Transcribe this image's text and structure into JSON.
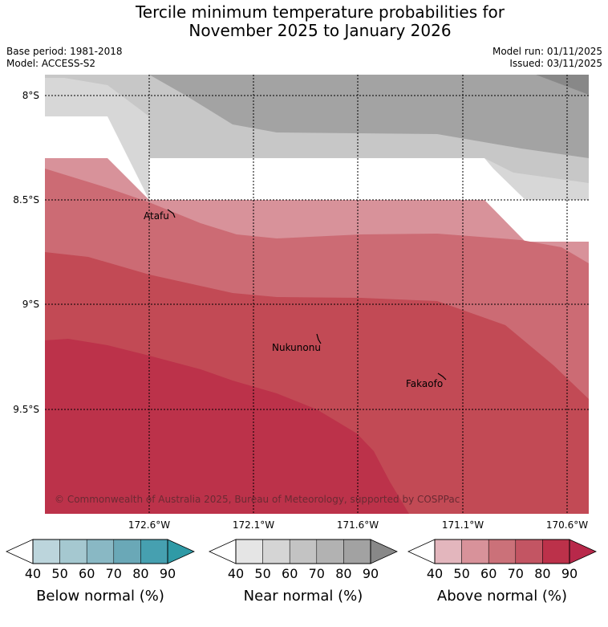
{
  "title_line1": "Tercile minimum temperature probabilities for",
  "title_line2": "November 2025 to January 2026",
  "base_period": "Base period: 1981-2018",
  "model": "Model: ACCESS-S2",
  "model_run": "Model run: 01/11/2025",
  "issued": "Issued: 03/11/2025",
  "map": {
    "lat_labels": [
      "8°S",
      "8.5°S",
      "9°S",
      "9.5°S"
    ],
    "lon_labels": [
      "172.6°W",
      "172.1°W",
      "171.6°W",
      "171.1°W",
      "170.6°W"
    ],
    "places": [
      "Atafu",
      "Nukunonu",
      "Fakaofo"
    ],
    "copyright": "© Commonwealth of Australia 2025, Bureau of Meteorology, supported by COSPPac",
    "colors": {
      "near_60": "#d7d7d7",
      "near_70": "#c7c7c7",
      "near_80": "#a3a3a3",
      "near_90": "#888888",
      "above_50": "#d8929a",
      "above_60": "#cc6b74",
      "above_70": "#c24a55",
      "above_80": "#bc324a"
    }
  },
  "colorbars": [
    {
      "name": "below",
      "label": "Below normal (%)",
      "ticks": [
        "40",
        "50",
        "60",
        "70",
        "80",
        "90"
      ],
      "colors": [
        "#ffffff",
        "#bcd5dc",
        "#a5c8d0",
        "#89b8c4",
        "#6aa8b7",
        "#46a0b0",
        "#2f9aa6"
      ]
    },
    {
      "name": "near",
      "label": "Near normal (%)",
      "ticks": [
        "40",
        "50",
        "60",
        "70",
        "80",
        "90"
      ],
      "colors": [
        "#ffffff",
        "#e5e5e5",
        "#d5d5d5",
        "#c3c3c3",
        "#b2b2b2",
        "#a2a2a2",
        "#888888"
      ]
    },
    {
      "name": "above",
      "label": "Above normal (%)",
      "ticks": [
        "40",
        "50",
        "60",
        "70",
        "80",
        "90"
      ],
      "colors": [
        "#ffffff",
        "#e3b6bd",
        "#d8929a",
        "#cb7179",
        "#c35563",
        "#bc314a",
        "#b8284a"
      ]
    }
  ]
}
